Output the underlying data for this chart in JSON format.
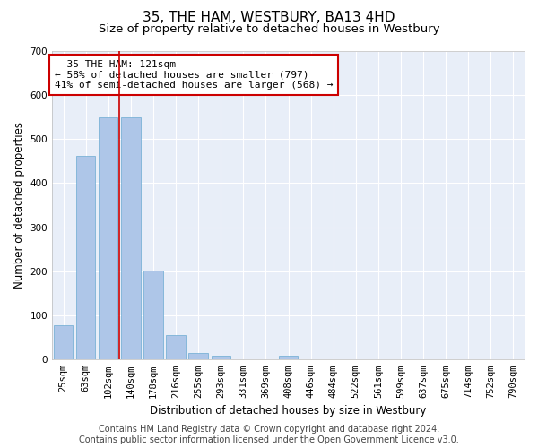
{
  "title": "35, THE HAM, WESTBURY, BA13 4HD",
  "subtitle": "Size of property relative to detached houses in Westbury",
  "xlabel": "Distribution of detached houses by size in Westbury",
  "ylabel": "Number of detached properties",
  "footer_line1": "Contains HM Land Registry data © Crown copyright and database right 2024.",
  "footer_line2": "Contains public sector information licensed under the Open Government Licence v3.0.",
  "categories": [
    "25sqm",
    "63sqm",
    "102sqm",
    "140sqm",
    "178sqm",
    "216sqm",
    "255sqm",
    "293sqm",
    "331sqm",
    "369sqm",
    "408sqm",
    "446sqm",
    "484sqm",
    "522sqm",
    "561sqm",
    "599sqm",
    "637sqm",
    "675sqm",
    "714sqm",
    "752sqm",
    "790sqm"
  ],
  "values": [
    78,
    462,
    549,
    549,
    202,
    55,
    14,
    8,
    0,
    0,
    8,
    0,
    0,
    0,
    0,
    0,
    0,
    0,
    0,
    0,
    0
  ],
  "bar_color": "#aec6e8",
  "bar_edge_color": "#6aabd2",
  "highlight_bar_index": 2,
  "highlight_color": "#cc0000",
  "annotation_text": "  35 THE HAM: 121sqm\n← 58% of detached houses are smaller (797)\n41% of semi-detached houses are larger (568) →",
  "annotation_box_color": "#ffffff",
  "annotation_box_edge_color": "#cc0000",
  "ylim": [
    0,
    700
  ],
  "yticks": [
    0,
    100,
    200,
    300,
    400,
    500,
    600,
    700
  ],
  "bg_color": "#e8eef8",
  "grid_color": "#ffffff",
  "title_fontsize": 11,
  "subtitle_fontsize": 9.5,
  "axis_label_fontsize": 8.5,
  "tick_fontsize": 7.5,
  "footer_fontsize": 7
}
